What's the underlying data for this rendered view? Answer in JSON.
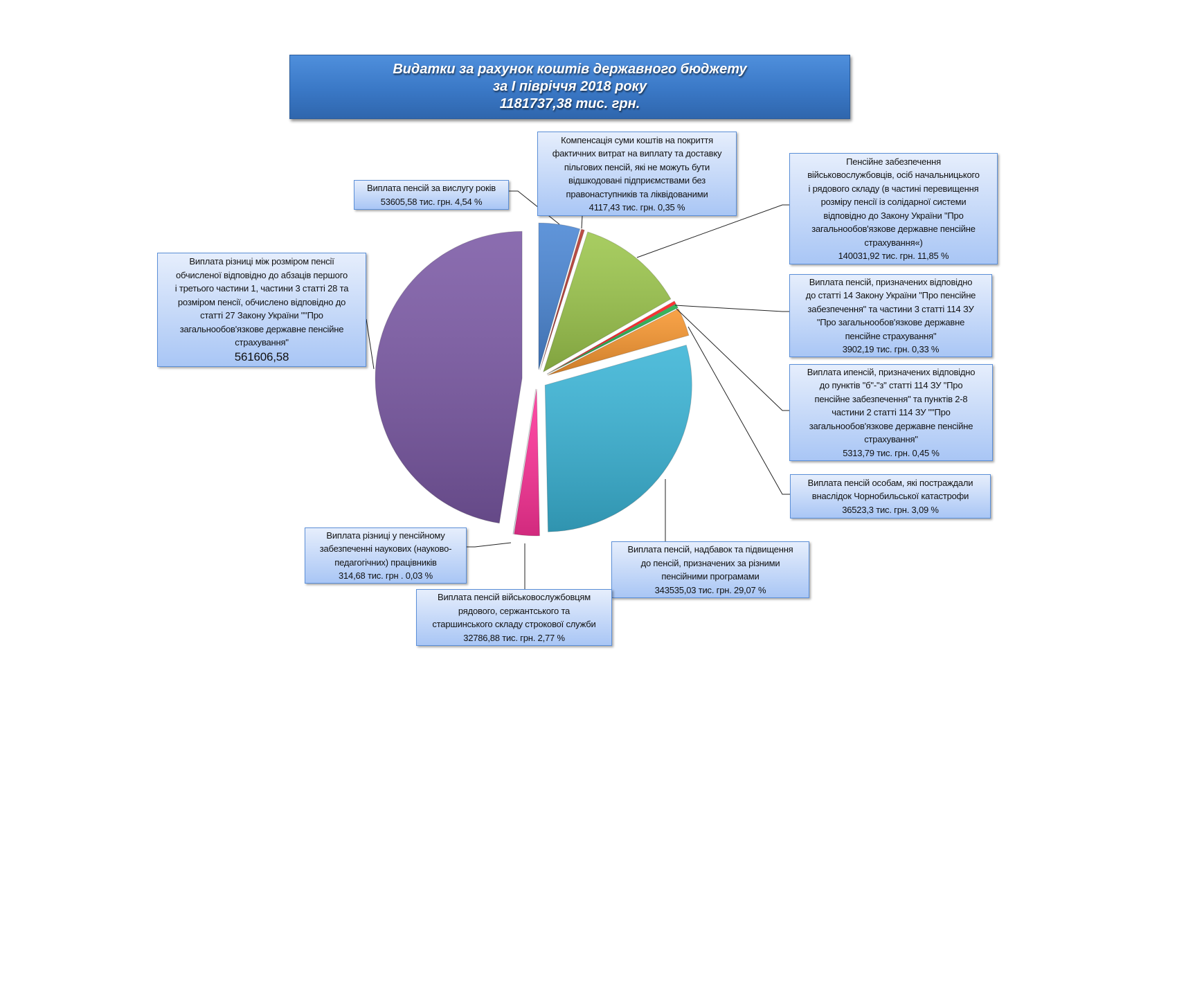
{
  "chart_data": {
    "type": "pie",
    "title": [
      "Видатки за рахунок коштів державного бюджету",
      "за І півріччя 2018 року",
      "1181737,38 тис. грн."
    ],
    "total": 1181737.38,
    "unit": "тис. грн.",
    "slices": [
      {
        "value": 53605.58,
        "percent": 4.54,
        "color": "#4a86d4",
        "label": [
          "Виплата пенсій за вислугу років",
          "53605,58 тис. грн. 4,54 %"
        ]
      },
      {
        "value": 4117.43,
        "percent": 0.35,
        "color": "#b5372e",
        "label": [
          "Компенсація суми коштів на покриття",
          "фактичних витрат на виплату та доставку",
          "пільгових пенсій, які не можуть бути",
          "відшкодовані підприємствами без",
          "правонаступників та ліквідованими",
          "4117,43 тис. грн. 0,35 %"
        ]
      },
      {
        "value": 140031.92,
        "percent": 11.85,
        "color": "#9cc64c",
        "label": [
          "Пенсійне забезпечення",
          "військовослужбовців, осіб начальницького",
          "і рядового складу (в частині перевищення",
          "розміру пенсії із солідарної системи",
          "відповідно до Закону України  \"Про",
          "загальнообов'язкове державне пенсійне",
          "страхування«)",
          "140031,92 тис. грн. 11,85 %"
        ]
      },
      {
        "value": 3902.19,
        "percent": 0.33,
        "color": "#ff1a1a",
        "label": [
          "Виплата пенсій, призначених відповідно",
          "до статті 14 Закону України \"Про пенсійне",
          "забезпечення\" та частини 3 статті 114 ЗУ",
          "\"Про загальнообов'язкове державне",
          "пенсійне страхування\"",
          "3902,19 тис. грн. 0,33 %"
        ]
      },
      {
        "value": 5313.79,
        "percent": 0.45,
        "color": "#1fae48",
        "label": [
          "Виплата ипенсій, призначених відповідно",
          "до пунктів \"б\"-\"з\" статті 114 ЗУ \"Про",
          "пенсійне забезпечення\" та пунктів 2-8",
          "частини 2 статті 114 ЗУ \"\"Про",
          "загальнообов'язкове державне пенсійне",
          "страхування\"",
          "5313,79 тис. грн. 0,45 %"
        ]
      },
      {
        "value": 36523.3,
        "percent": 3.09,
        "color": "#f7962f",
        "label": [
          "Виплата пенсій  особам, які постраждали",
          "внаслідок Чорнобильської катастрофи",
          "36523,3  тис. грн. 3,09 %"
        ]
      },
      {
        "value": 343535.03,
        "percent": 29.07,
        "color": "#3ab4d6",
        "label": [
          "Виплата пенсій, надбавок та підвищення",
          "до пенсій, призначених за різними",
          "пенсійними програмами",
          "343535,03 тис. грн.  29,07 %"
        ]
      },
      {
        "value": 32786.88,
        "percent": 2.77,
        "color": "#ff3399",
        "label": [
          "Виплата пенсій військовослужбовцям",
          "рядового, сержантського та",
          "старшинського складу строкової служби",
          "32786,88 тис. грн. 2,77 %"
        ]
      },
      {
        "value": 314.68,
        "percent": 0.03,
        "color": "#9fb8e0",
        "label": [
          "Виплата різниці у пенсійному",
          "забезпеченні наукових (науково-",
          "педагогічних) працівників",
          "314,68 тис. грн . 0,03 %"
        ]
      },
      {
        "value": 561606.58,
        "color": "#7b59a5",
        "label": [
          "Виплата різниці між розміром пенсії",
          "обчисленої відповідно до абзаців першого",
          "і третього частини 1, частини 3 статті 28 та",
          "розміром пенсії, обчислено відповідно до",
          "статті 27 Закону України  \"\"Про",
          "загальнообов'язкове державне пенсійне",
          "страхування\"",
          "561606,58"
        ]
      }
    ]
  }
}
